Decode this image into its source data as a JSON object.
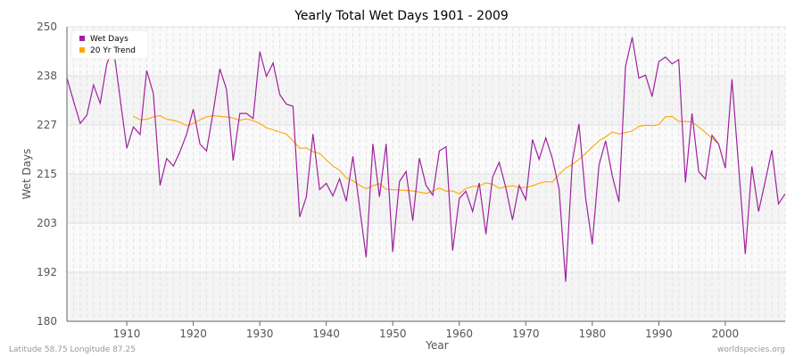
{
  "chart_data": {
    "type": "line",
    "title": "Yearly Total Wet Days 1901 - 2009",
    "xlabel": "Year",
    "ylabel": "Wet Days",
    "xlim": [
      1901,
      2009
    ],
    "ylim": [
      180,
      250
    ],
    "y_ticks": [
      "180",
      "192",
      "203",
      "215",
      "227",
      "238",
      "250"
    ],
    "x_ticks": [
      "1910",
      "1920",
      "1930",
      "1940",
      "1950",
      "1960",
      "1970",
      "1980",
      "1990",
      "2000"
    ],
    "grid": true,
    "legend_position": "top-left",
    "series": [
      {
        "name": "Wet Days",
        "color": "#a020a0",
        "start_year": 1901,
        "values": [
          237.8,
          232.3,
          227.0,
          229.0,
          236.2,
          231.8,
          241.2,
          245.0,
          233.0,
          221.1,
          226.2,
          224.4,
          239.6,
          234.1,
          212.3,
          218.7,
          216.9,
          220.3,
          224.5,
          230.4,
          222.1,
          220.5,
          229.8,
          240.0,
          235.1,
          218.2,
          229.4,
          229.4,
          228.2,
          244.1,
          238.2,
          241.4,
          233.9,
          231.6,
          231.1,
          204.8,
          209.5,
          224.5,
          211.3,
          212.8,
          209.8,
          213.9,
          208.5,
          219.2,
          207.2,
          195.2,
          222.2,
          209.6,
          222.2,
          196.5,
          213.2,
          215.6,
          203.9,
          218.8,
          212.3,
          210.0,
          220.5,
          221.5,
          196.8,
          209.2,
          210.9,
          206.1,
          212.9,
          200.7,
          214.2,
          217.8,
          211.8,
          204.1,
          212.3,
          208.9,
          223.2,
          218.5,
          223.6,
          218.7,
          211.5,
          189.4,
          218.2,
          226.9,
          209.3,
          198.3,
          217.1,
          222.9,
          214.6,
          208.4,
          240.6,
          247.5,
          237.8,
          238.5,
          233.4,
          241.7,
          242.8,
          241.2,
          242.2,
          213.0,
          229.4,
          215.6,
          213.8,
          224.2,
          222.1,
          216.4,
          237.5,
          217.0,
          196.0,
          216.8,
          206.1,
          213.2,
          220.7,
          207.9,
          210.3
        ]
      },
      {
        "name": "20 Yr Trend",
        "color": "#ffa500",
        "start_year": 1911,
        "values": [
          228.7,
          227.9,
          228.0,
          228.6,
          228.9,
          228.0,
          227.8,
          227.3,
          226.5,
          227.0,
          227.9,
          228.6,
          228.9,
          228.7,
          228.6,
          228.3,
          227.8,
          228.1,
          227.7,
          227.0,
          226.0,
          225.5,
          225.0,
          224.5,
          222.9,
          221.1,
          221.2,
          220.3,
          219.9,
          218.4,
          216.9,
          215.9,
          214.1,
          213.4,
          212.3,
          211.5,
          212.2,
          212.7,
          211.4,
          211.3,
          211.2,
          211.1,
          211.0,
          210.7,
          210.4,
          210.9,
          211.7,
          210.9,
          211.0,
          210.3,
          211.6,
          212.0,
          212.2,
          212.9,
          212.6,
          211.6,
          212.0,
          212.2,
          211.8,
          211.8,
          212.2,
          212.8,
          213.2,
          213.1,
          214.9,
          216.4,
          217.3,
          218.5,
          219.9,
          221.4,
          222.9,
          223.8,
          225.0,
          224.5,
          224.9,
          225.2,
          226.3,
          226.6,
          226.5,
          226.7,
          228.6,
          228.7,
          227.5,
          227.5,
          227.4,
          226.2,
          224.9,
          223.5,
          222.1
        ]
      }
    ]
  },
  "footer": {
    "location": "Latitude 58.75 Longitude 87.25",
    "source": "worldspecies.org"
  }
}
